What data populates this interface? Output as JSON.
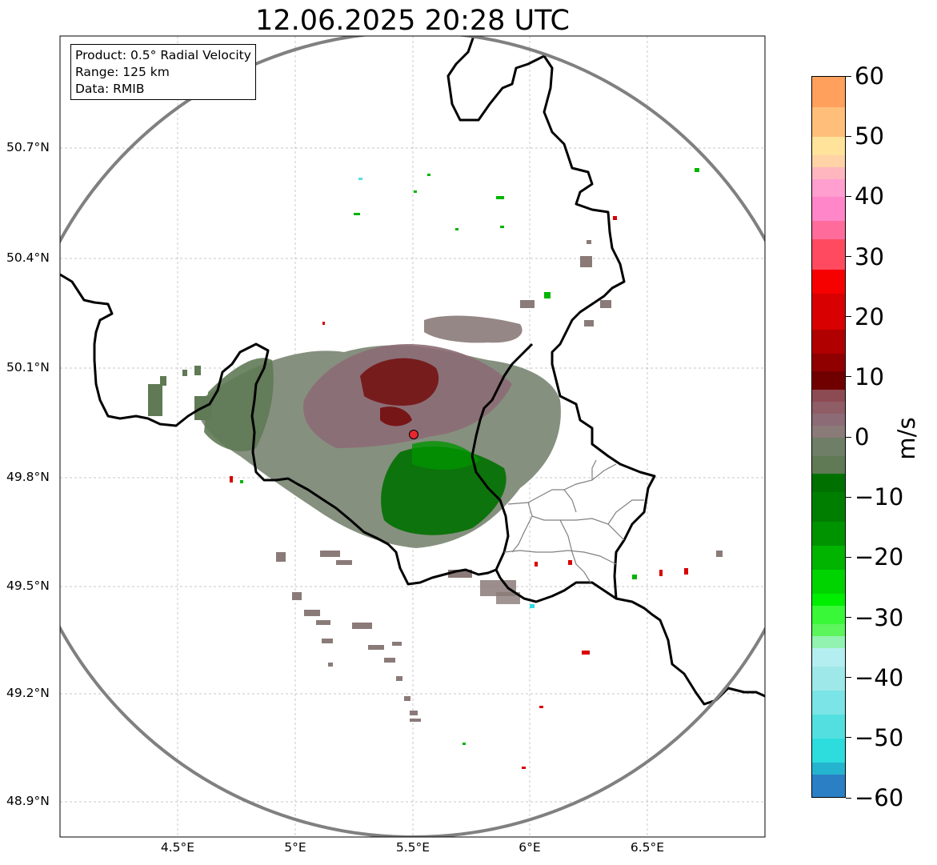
{
  "title": "12.06.2025 20:28 UTC",
  "info": {
    "product": "Product: 0.5° Radial Velocity",
    "range": "Range: 125 km",
    "data": "Data: RMIB"
  },
  "lat_labels": [
    "50.7°N",
    "50.4°N",
    "50.1°N",
    "49.8°N",
    "49.5°N",
    "49.2°N",
    "48.9°N"
  ],
  "lon_labels": [
    "4.5°E",
    "5°E",
    "5.5°E",
    "6°E",
    "6.5°E"
  ],
  "colorbar": {
    "unit": "m/s",
    "ticks": [
      "60",
      "50",
      "40",
      "30",
      "20",
      "10",
      "0",
      "−10",
      "−20",
      "−30",
      "−40",
      "−50",
      "−60"
    ],
    "range": [
      -60,
      60
    ],
    "colors": [
      {
        "from": 55,
        "to": 60,
        "color": "#ffa05c"
      },
      {
        "from": 50,
        "to": 55,
        "color": "#ffbf7a"
      },
      {
        "from": 47,
        "to": 50,
        "color": "#ffe39a"
      },
      {
        "from": 45,
        "to": 47,
        "color": "#ffd3a6"
      },
      {
        "from": 43,
        "to": 45,
        "color": "#ffb6bf"
      },
      {
        "from": 40,
        "to": 43,
        "color": "#ff9fd0"
      },
      {
        "from": 36,
        "to": 40,
        "color": "#ff86c8"
      },
      {
        "from": 33,
        "to": 36,
        "color": "#ff6c9c"
      },
      {
        "from": 28,
        "to": 33,
        "color": "#ff4a60"
      },
      {
        "from": 24,
        "to": 28,
        "color": "#f60000"
      },
      {
        "from": 18,
        "to": 24,
        "color": "#d80000"
      },
      {
        "from": 14,
        "to": 18,
        "color": "#b00000"
      },
      {
        "from": 11,
        "to": 14,
        "color": "#900000"
      },
      {
        "from": 8,
        "to": 11,
        "color": "#700000"
      },
      {
        "from": 6,
        "to": 8,
        "color": "#8c4a52"
      },
      {
        "from": 4,
        "to": 6,
        "color": "#8f5d66"
      },
      {
        "from": 2,
        "to": 4,
        "color": "#8c6b76"
      },
      {
        "from": 0,
        "to": 2,
        "color": "#8a7a78"
      },
      {
        "from": -3,
        "to": 0,
        "color": "#6f7e66"
      },
      {
        "from": -6,
        "to": -3,
        "color": "#5f7a55"
      },
      {
        "from": -9,
        "to": -6,
        "color": "#007000"
      },
      {
        "from": -14,
        "to": -9,
        "color": "#007e00"
      },
      {
        "from": -18,
        "to": -14,
        "color": "#009300"
      },
      {
        "from": -22,
        "to": -18,
        "color": "#00b400"
      },
      {
        "from": -26,
        "to": -22,
        "color": "#00d400"
      },
      {
        "from": -28,
        "to": -26,
        "color": "#00ee00"
      },
      {
        "from": -31,
        "to": -28,
        "color": "#38f838"
      },
      {
        "from": -33,
        "to": -31,
        "color": "#5cf55c"
      },
      {
        "from": -35,
        "to": -33,
        "color": "#92f2b0"
      },
      {
        "from": -38,
        "to": -35,
        "color": "#b5eef0"
      },
      {
        "from": -42,
        "to": -38,
        "color": "#9fe8e9"
      },
      {
        "from": -46,
        "to": -42,
        "color": "#7be4e6"
      },
      {
        "from": -50,
        "to": -46,
        "color": "#53dfe0"
      },
      {
        "from": -54,
        "to": -50,
        "color": "#2ddcdd"
      },
      {
        "from": -56,
        "to": -54,
        "color": "#25b4d0"
      },
      {
        "from": -60,
        "to": -56,
        "color": "#2b80c5"
      }
    ]
  },
  "colors": {
    "range_ring": "#808080",
    "border": "#000000",
    "admin_border": "#808080",
    "grid": "#b5b5b5",
    "radar_site": "#e8282d"
  }
}
